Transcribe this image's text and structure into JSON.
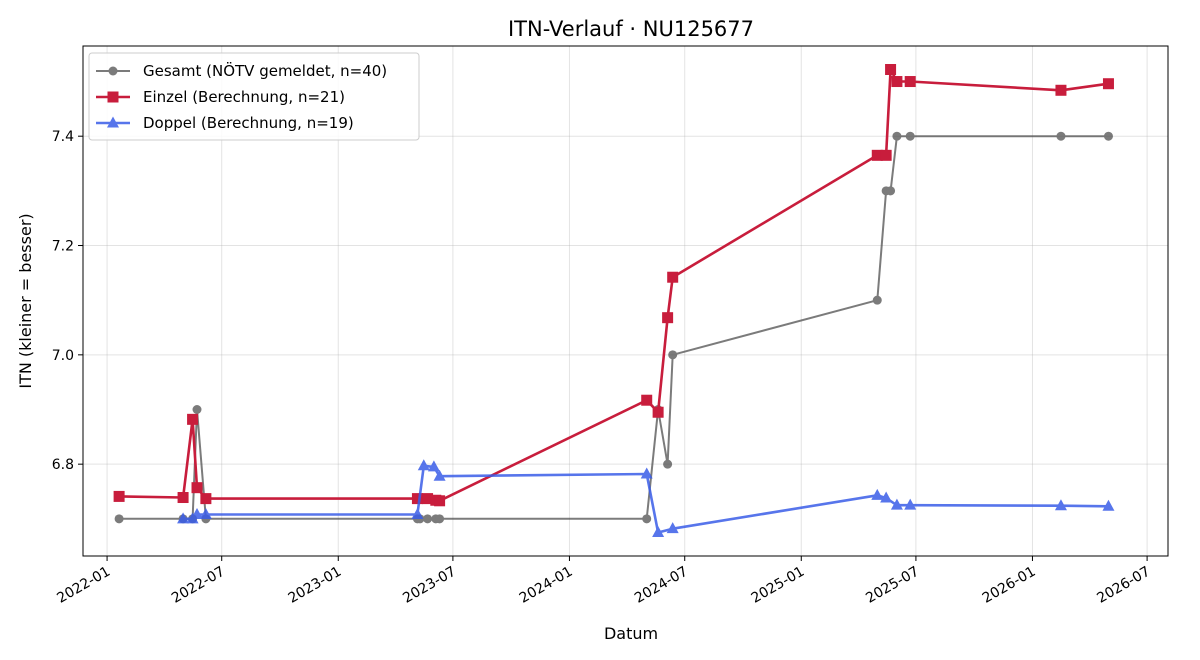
{
  "chart_data": {
    "type": "line",
    "title": "ITN-Verlauf · NU125677",
    "xlabel": "Datum",
    "ylabel": "ITN  (kleiner = besser)",
    "x_type": "date",
    "xlim": [
      "2021-11-24",
      "2026-08-03"
    ],
    "ylim": [
      6.632,
      7.565
    ],
    "x_ticks": [
      "2022-01-01",
      "2022-07-01",
      "2023-01-01",
      "2023-07-01",
      "2024-01-01",
      "2024-07-01",
      "2025-01-01",
      "2025-07-01",
      "2026-01-01",
      "2026-07-01"
    ],
    "x_tick_labels": [
      "2022-01",
      "2022-07",
      "2023-01",
      "2023-07",
      "2024-01",
      "2024-07",
      "2025-01",
      "2025-07",
      "2026-01",
      "2026-07"
    ],
    "y_ticks": [
      6.8,
      7.0,
      7.2,
      7.4
    ],
    "y_tick_labels": [
      "6.8",
      "7.0",
      "7.2",
      "7.4"
    ],
    "grid": true,
    "legend_position": "top-left",
    "series": [
      {
        "name": "Gesamt (NÖTV gemeldet, n=40)",
        "color": "#444444",
        "marker": "circle",
        "opacity": 0.7,
        "x": [
          "2022-01-20",
          "2022-05-01",
          "2022-05-16",
          "2022-05-23",
          "2022-06-06",
          "2023-05-06",
          "2023-05-10",
          "2023-05-22",
          "2023-06-04",
          "2023-06-10",
          "2024-05-02",
          "2024-05-20",
          "2024-06-04",
          "2024-06-12",
          "2025-05-01",
          "2025-05-15",
          "2025-05-22",
          "2025-06-01",
          "2025-06-22",
          "2026-02-15",
          "2026-05-01"
        ],
        "y": [
          6.7,
          6.7,
          6.7,
          6.9,
          6.7,
          6.7,
          6.7,
          6.7,
          6.7,
          6.7,
          6.7,
          6.9,
          6.8,
          7.0,
          7.1,
          7.3,
          7.3,
          7.4,
          7.4,
          7.4,
          7.4
        ]
      },
      {
        "name": "Einzel (Berechnung, n=21)",
        "color": "#c81d3c",
        "marker": "square",
        "opacity": 1,
        "x": [
          "2022-01-20",
          "2022-05-01",
          "2022-05-16",
          "2022-05-23",
          "2022-06-06",
          "2023-05-06",
          "2023-05-22",
          "2023-06-04",
          "2023-06-10",
          "2024-05-02",
          "2024-05-20",
          "2024-06-04",
          "2024-06-12",
          "2025-05-01",
          "2025-05-15",
          "2025-05-22",
          "2025-06-01",
          "2025-06-22",
          "2026-02-15",
          "2026-05-01"
        ],
        "y": [
          6.741,
          6.739,
          6.882,
          6.757,
          6.737,
          6.737,
          6.737,
          6.734,
          6.733,
          6.917,
          6.895,
          7.068,
          7.142,
          7.365,
          7.365,
          7.522,
          7.5,
          7.5,
          7.484,
          7.496
        ]
      },
      {
        "name": "Doppel (Berechnung, n=19)",
        "color": "#3a5de8",
        "marker": "triangle",
        "opacity": 0.85,
        "x": [
          "2022-05-01",
          "2022-05-16",
          "2022-05-23",
          "2022-06-06",
          "2023-05-06",
          "2023-05-16",
          "2023-06-01",
          "2023-06-10",
          "2024-05-02",
          "2024-05-20",
          "2024-06-12",
          "2025-05-01",
          "2025-05-15",
          "2025-06-01",
          "2025-06-22",
          "2026-02-15",
          "2026-05-01"
        ],
        "y": [
          6.7,
          6.7,
          6.708,
          6.708,
          6.708,
          6.797,
          6.795,
          6.778,
          6.782,
          6.675,
          6.682,
          6.743,
          6.738,
          6.725,
          6.725,
          6.724,
          6.723
        ]
      }
    ]
  }
}
